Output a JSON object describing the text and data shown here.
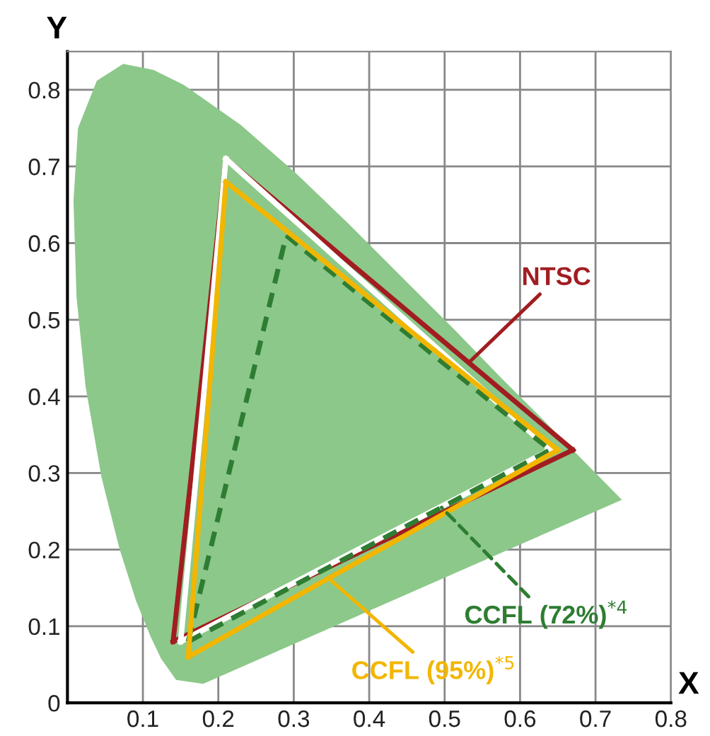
{
  "chart_data": {
    "type": "line",
    "xlabel": "X",
    "ylabel": "Y",
    "xlim": [
      0,
      0.8
    ],
    "ylim": [
      0,
      0.85
    ],
    "xticks": [
      {
        "value": 0,
        "label": null
      },
      0.1,
      0.2,
      0.3,
      0.4,
      0.5,
      0.6,
      0.7,
      0.8
    ],
    "yticks": [
      0,
      0.1,
      0.2,
      0.3,
      0.4,
      0.5,
      0.6,
      0.7,
      0.8
    ],
    "grid": true,
    "legend": false,
    "series": [
      {
        "type": "area",
        "color": "#8cc88a",
        "x": [
          0.18,
          0.144,
          0.124,
          0.11,
          0.091,
          0.069,
          0.045,
          0.024,
          0.012,
          0.008,
          0.014,
          0.039,
          0.074,
          0.114,
          0.155,
          0.23,
          0.302,
          0.373,
          0.444,
          0.513,
          0.575,
          0.627,
          0.692,
          0.735,
          0.18
        ],
        "values": [
          0.025,
          0.03,
          0.058,
          0.087,
          0.133,
          0.201,
          0.295,
          0.413,
          0.53,
          0.655,
          0.75,
          0.812,
          0.834,
          0.826,
          0.806,
          0.754,
          0.692,
          0.625,
          0.555,
          0.487,
          0.424,
          0.373,
          0.308,
          0.265,
          0.025
        ]
      },
      {
        "name": "NTSC",
        "color": "#a11d21",
        "line_style": "solid",
        "x": [
          0.21,
          0.67
        ],
        "values": [
          0.71,
          0.33
        ]
      },
      {
        "color": "#a11d21",
        "line_style": "solid",
        "x": [
          0.14,
          0.67
        ],
        "values": [
          0.08,
          0.33
        ]
      },
      {
        "color": "#a11d21",
        "line_style": "solid",
        "x": [
          0.14,
          0.21
        ],
        "values": [
          0.08,
          0.71
        ]
      },
      {
        "color": "#ffffff",
        "line_style": "solid",
        "x": [
          0.21,
          0.64
        ],
        "values": [
          0.71,
          0.33
        ]
      },
      {
        "color": "#ffffff",
        "line_style": "solid",
        "x": [
          0.15,
          0.64
        ],
        "values": [
          0.08,
          0.33
        ]
      },
      {
        "color": "#ffffff",
        "line_style": "solid",
        "x": [
          0.15,
          0.21
        ],
        "values": [
          0.08,
          0.71
        ]
      },
      {
        "name": "CCFL (72%)$^{*4}$",
        "color": "#2e7d32",
        "line_style": "dashed",
        "x": [
          0.16,
          0.64
        ],
        "values": [
          0.08,
          0.33
        ]
      },
      {
        "color": "#2e7d32",
        "line_style": "dashed",
        "x": [
          0.29,
          0.64
        ],
        "values": [
          0.61,
          0.33
        ]
      },
      {
        "color": "#2e7d32",
        "line_style": "dashed",
        "x": [
          0.16,
          0.29
        ],
        "values": [
          0.08,
          0.61
        ]
      },
      {
        "name": "CCFL (95%)$^{*5}$",
        "color": "#f2b600",
        "line_style": "solid",
        "x": [
          0.16,
          0.65
        ],
        "values": [
          0.06,
          0.33
        ]
      },
      {
        "color": "#f2b600",
        "line_style": "solid",
        "x": [
          0.21,
          0.65
        ],
        "values": [
          0.68,
          0.33
        ]
      },
      {
        "color": "#f2b600",
        "line_style": "solid",
        "x": [
          0.16,
          0.21
        ],
        "values": [
          0.06,
          0.68
        ]
      }
    ]
  }
}
